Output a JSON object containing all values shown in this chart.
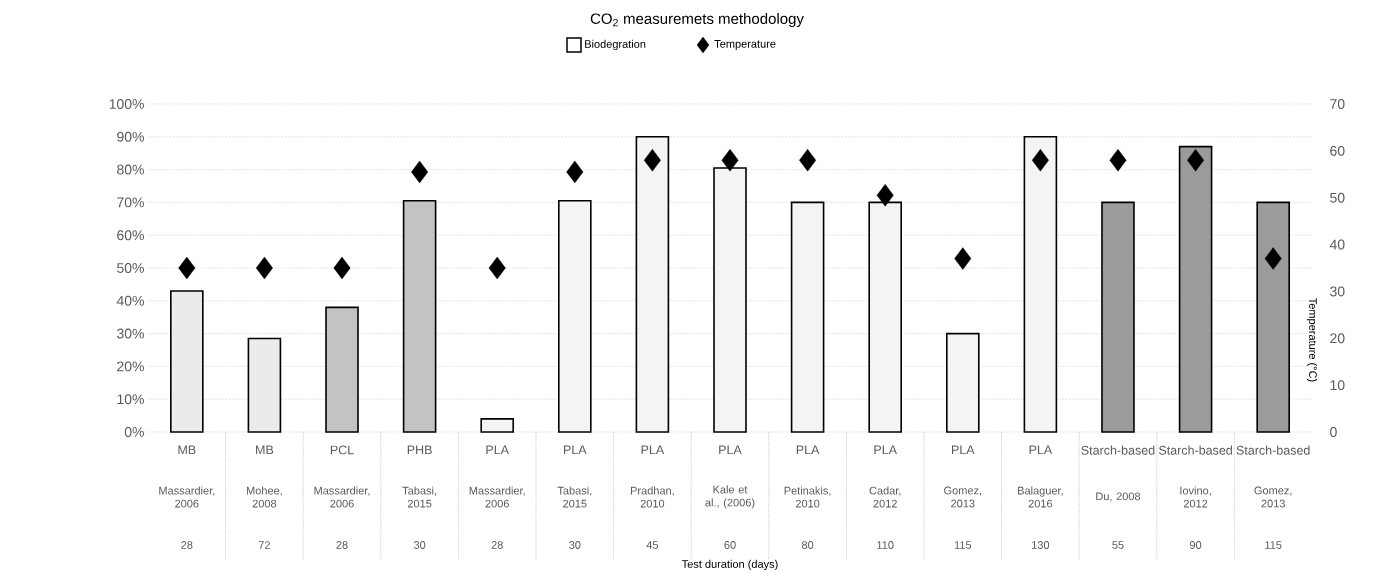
{
  "chart_data": {
    "type": "bar",
    "title": "CO$_{2}$ measuremets methodology",
    "y2label": "Temperature (°C)",
    "categories": [
      "MB",
      "MB",
      "PCL",
      "PHB",
      "PLA",
      "PLA",
      "PLA",
      "PLA",
      "PLA",
      "PLA",
      "PLA",
      "PLA",
      "Starch-based",
      "Starch-based",
      "Starch-based"
    ],
    "annotations": [
      "Massardier, 2006",
      "Mohee, 2008",
      "Massardier, 2006",
      "Tabasi, 2015",
      "Massardier, 2006",
      "Tabasi, 2015",
      "Pradhan, 2010",
      "Kale et al., (2006)",
      "Petinakis, 2010",
      "Cadar, 2012",
      "Gomez, 2013",
      "Balaguer, 2016",
      "Du, 2008",
      "Iovino, 2012",
      "Gomez, 2013",
      "28",
      "72",
      "28",
      "30",
      "28",
      "30",
      "45",
      "60",
      "80",
      "110",
      "115",
      "130",
      "55",
      "90",
      "115",
      "Test duration (days)"
    ],
    "series": [
      {
        "name": "Biodegration",
        "values": [
          43,
          28.5,
          38,
          70.5,
          4,
          70.5,
          90,
          80.5,
          70,
          70,
          30,
          90,
          70,
          87,
          70
        ],
        "colors": [
          "#ebebeb",
          "#ebebeb",
          "#c3c3c3",
          "#c3c3c3",
          "#f4f4f4",
          "#f4f4f4",
          "#f4f4f4",
          "#f4f4f4",
          "#f4f4f4",
          "#f4f4f4",
          "#f4f4f4",
          "#f4f4f4",
          "#9b9b9b",
          "#9b9b9b",
          "#9b9b9b"
        ]
      },
      {
        "name": "Temperature",
        "type": "scatter",
        "axis": "y2",
        "color": "#000000",
        "values": [
          35,
          35,
          35,
          55.5,
          35,
          55.5,
          58,
          58,
          58,
          50.5,
          37,
          58,
          58,
          58,
          37
        ]
      }
    ],
    "ylim": [
      0,
      100
    ],
    "yticks": [
      {
        "value": 0,
        "label": "0%"
      },
      {
        "value": 10,
        "label": "10%"
      },
      {
        "value": 20,
        "label": "20%"
      },
      {
        "value": 30,
        "label": "30%"
      },
      {
        "value": 40,
        "label": "40%"
      },
      {
        "value": 50,
        "label": "50%"
      },
      {
        "value": 60,
        "label": "60%"
      },
      {
        "value": 70,
        "label": "70%"
      },
      {
        "value": 80,
        "label": "80%"
      },
      {
        "value": 90,
        "label": "90%"
      },
      {
        "value": 100,
        "label": "100%"
      }
    ],
    "y2lim": [
      0,
      70
    ],
    "y2ticks": [
      0,
      10,
      20,
      30,
      40,
      50,
      60,
      70
    ],
    "grid": "y",
    "legend": "top",
    "marker": "diamond"
  }
}
